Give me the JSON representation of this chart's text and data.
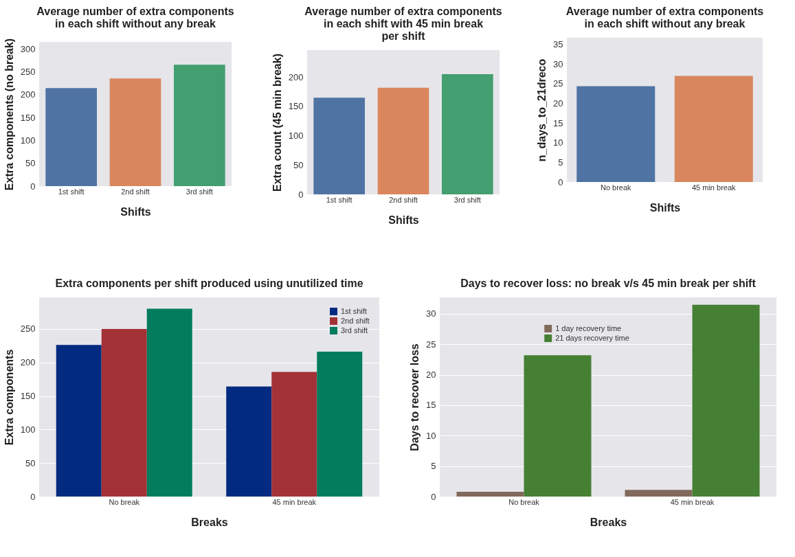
{
  "chart_data": [
    {
      "type": "bar",
      "title": "Average number of extra components in each shift without any break",
      "xlabel": "Shifts",
      "ylabel": "Extra components (no break)",
      "categories": [
        "1st shift",
        "2nd shift",
        "3rd shift"
      ],
      "values": [
        214,
        235,
        265
      ],
      "colors": [
        "#4f74a3",
        "#d9865e",
        "#439e70"
      ],
      "ylim": [
        0,
        315
      ],
      "yticks": [
        0,
        50,
        100,
        150,
        200,
        250,
        300
      ],
      "grid": false,
      "legend": false
    },
    {
      "type": "bar",
      "title": "Average number of extra components in each shift with 45 min break per shift",
      "xlabel": "Shifts",
      "ylabel": "Extra count (45 min break)",
      "categories": [
        "1st shift",
        "2nd shift",
        "3rd shift"
      ],
      "values": [
        165,
        182,
        205
      ],
      "colors": [
        "#4f74a3",
        "#d9865e",
        "#439e70"
      ],
      "ylim": [
        0,
        246
      ],
      "yticks": [
        0,
        50,
        100,
        150,
        200
      ],
      "grid": false,
      "legend": false
    },
    {
      "type": "bar",
      "title": "Average number of extra components in each shift without any break",
      "xlabel": "Shifts",
      "ylabel": "n_days_to_21dreco",
      "categories": [
        "No break",
        "45 min break"
      ],
      "values": [
        24.4,
        27.0
      ],
      "colors": [
        "#4f74a3",
        "#d9865e"
      ],
      "ylim": [
        0,
        36.7
      ],
      "yticks": [
        0,
        5,
        10,
        15,
        20,
        25,
        30,
        35
      ],
      "grid": false,
      "legend": false
    },
    {
      "type": "bar",
      "title": "Extra components per shift produced using unutilized time",
      "xlabel": "Breaks",
      "ylabel": "Extra components",
      "categories": [
        "No break",
        "45 min break"
      ],
      "series": [
        {
          "name": "1st shift",
          "color": "#012a80",
          "values": [
            226,
            164
          ]
        },
        {
          "name": "2nd shift",
          "color": "#a33237",
          "values": [
            250,
            186
          ]
        },
        {
          "name": "3rd shift",
          "color": "#017d5e",
          "values": [
            280,
            216
          ]
        }
      ],
      "ylim": [
        0,
        297
      ],
      "yticks": [
        0,
        50,
        100,
        150,
        200,
        250
      ],
      "grid": "y",
      "legend": "top right"
    },
    {
      "type": "bar",
      "title": "Days to recover loss: no break v/s 45 min break per shift",
      "xlabel": "Breaks",
      "ylabel": "Days to recover loss",
      "categories": [
        "No break",
        "45 min break"
      ],
      "series": [
        {
          "name": "1 day recovery time",
          "color": "#81695b",
          "values": [
            0.8,
            1.1
          ]
        },
        {
          "name": "21 days recovery time",
          "color": "#468033",
          "values": [
            23.2,
            31.5
          ]
        }
      ],
      "ylim": [
        0,
        32.7
      ],
      "yticks": [
        0,
        5,
        10,
        15,
        20,
        25,
        30
      ],
      "grid": "y",
      "legend": "top left"
    }
  ]
}
